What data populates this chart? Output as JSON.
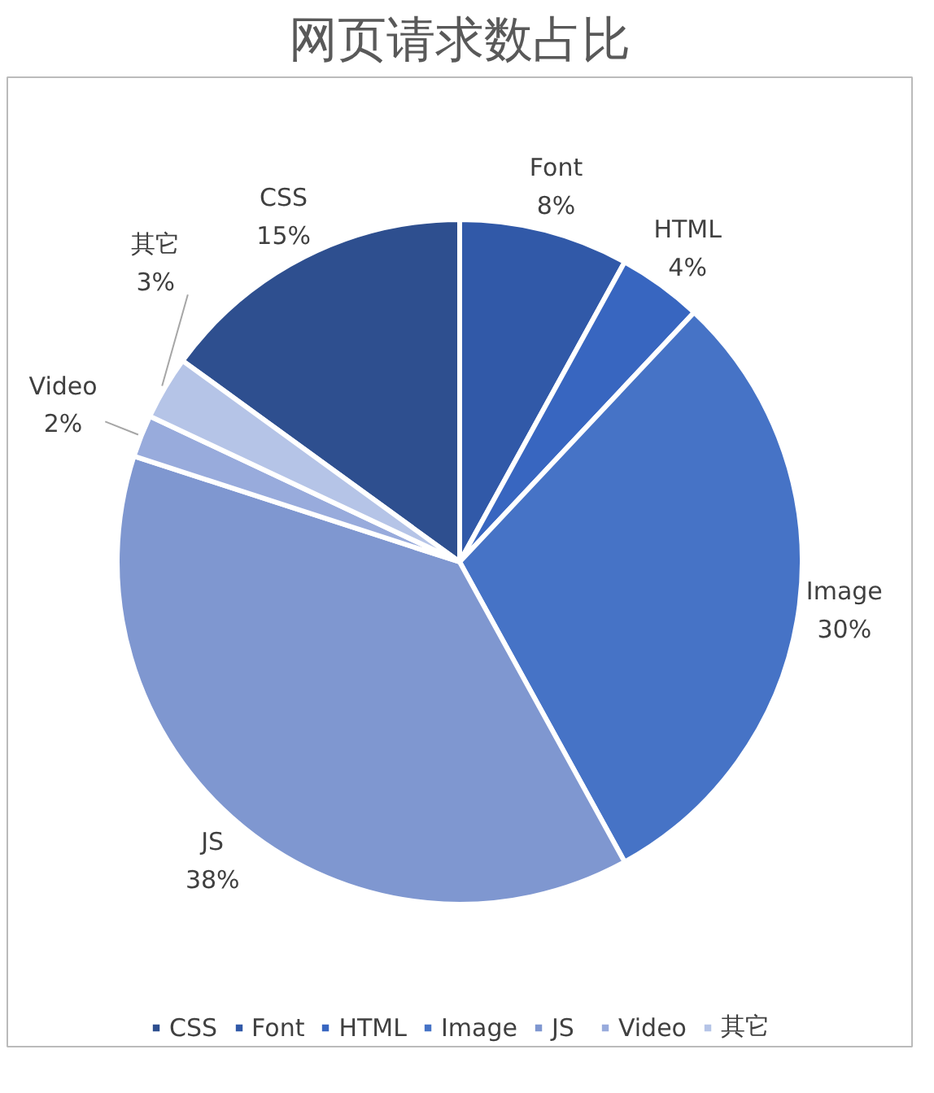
{
  "chart_data": {
    "type": "pie",
    "title": "网页请求数占比",
    "categories": [
      "CSS",
      "Font",
      "HTML",
      "Image",
      "JS",
      "Video",
      "其它"
    ],
    "values": [
      15,
      8,
      4,
      30,
      38,
      2,
      3
    ],
    "colors": [
      "#2e4f8f",
      "#3159a8",
      "#3866c0",
      "#4673c6",
      "#7f97d0",
      "#98abdc",
      "#b5c4e7"
    ],
    "value_labels": [
      "15%",
      "8%",
      "4%",
      "30%",
      "38%",
      "2%",
      "3%"
    ],
    "legend": "bottom"
  }
}
